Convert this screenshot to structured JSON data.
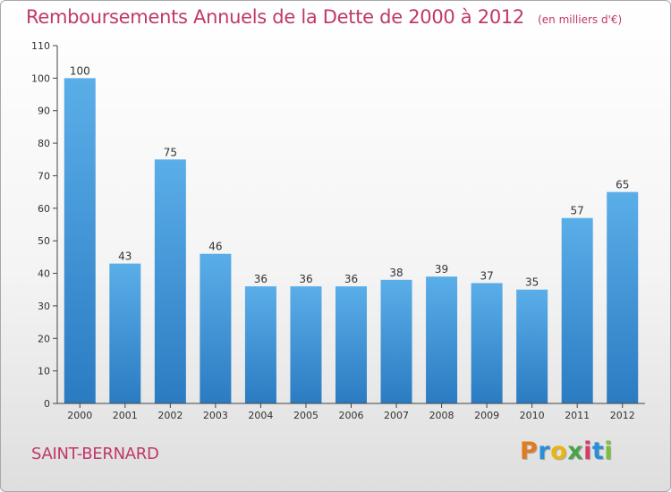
{
  "chart_data": {
    "type": "bar",
    "title": "Remboursements Annuels de la Dette de 2000 à 2012",
    "subtitle": "(en milliers d'€)",
    "categories": [
      "2000",
      "2001",
      "2002",
      "2003",
      "2004",
      "2005",
      "2006",
      "2007",
      "2008",
      "2009",
      "2010",
      "2011",
      "2012"
    ],
    "values": [
      100,
      43,
      75,
      46,
      36,
      36,
      36,
      38,
      39,
      37,
      35,
      57,
      65
    ],
    "ylim": [
      0,
      110
    ],
    "yticks": [
      "0",
      "10",
      "20",
      "30",
      "40",
      "50",
      "60",
      "70",
      "80",
      "90",
      "100",
      "110"
    ],
    "xlabel": "",
    "ylabel": "",
    "grid": false,
    "bar_color": "#4a9fe0"
  },
  "footer": {
    "commune": "SAINT-BERNARD",
    "logo_text": "Proxiti",
    "logo_colors": [
      "#e07b1f",
      "#2a8fd6",
      "#e8b512",
      "#4aa34a",
      "#d93a6a",
      "#2a8fd6",
      "#7bbf3a"
    ]
  }
}
